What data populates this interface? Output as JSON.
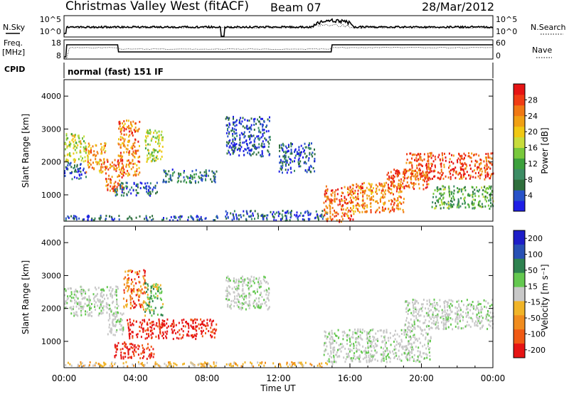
{
  "header": {
    "title": "Christmas Valley West (fitACF)",
    "beam": "Beam 07",
    "date": "28/Mar/2012"
  },
  "param_labels": {
    "nsky": "N.Sky",
    "nsearch": "N.Search",
    "freq_line1": "Freq.",
    "freq_line2": "[MHz]",
    "nave": "Nave",
    "cpid": "CPID",
    "cpid_value": "normal (fast) 151 IF",
    "noise_ticks_left": [
      "10^5",
      "10^0"
    ],
    "noise_ticks_right": [
      "10^5",
      "10^0"
    ],
    "freq_ticks": [
      "18",
      "8"
    ],
    "nave_ticks": [
      "60",
      "0"
    ]
  },
  "chart_data": [
    {
      "type": "heatmap",
      "name": "power",
      "xlabel": "",
      "ylabel": "Slant Range [km]",
      "xlim": [
        0,
        24
      ],
      "ylim": [
        200,
        4500
      ],
      "y_ticks": [
        "1000",
        "2000",
        "3000",
        "4000"
      ],
      "colorbar": {
        "label": "Power [dB]",
        "ticks": [
          "4",
          "8",
          "12",
          "16",
          "20",
          "24",
          "28"
        ],
        "colors": [
          "#1e1ee6",
          "#2852c8",
          "#2e6e3c",
          "#3c8c64",
          "#3ca03c",
          "#78c83c",
          "#c8dc3c",
          "#f0c814",
          "#f0a014",
          "#f07814",
          "#f03c14",
          "#e61414"
        ]
      },
      "regions": [
        {
          "t": [
            0.0,
            1.2
          ],
          "r": [
            2000,
            2900
          ],
          "level": 0.55
        },
        {
          "t": [
            0.0,
            1.2
          ],
          "r": [
            1500,
            2000
          ],
          "level": 0.15
        },
        {
          "t": [
            1.2,
            2.3
          ],
          "r": [
            1700,
            2600
          ],
          "level": 0.75
        },
        {
          "t": [
            2.3,
            3.3
          ],
          "r": [
            1100,
            2100
          ],
          "level": 0.85
        },
        {
          "t": [
            3.0,
            4.2
          ],
          "r": [
            1600,
            3300
          ],
          "level": 0.8
        },
        {
          "t": [
            4.5,
            5.5
          ],
          "r": [
            2000,
            3000
          ],
          "level": 0.5
        },
        {
          "t": [
            2.8,
            5.2
          ],
          "r": [
            1000,
            1400
          ],
          "level": 0.15
        },
        {
          "t": [
            5.5,
            8.5
          ],
          "r": [
            1400,
            1800
          ],
          "level": 0.2
        },
        {
          "t": [
            0.0,
            8.8
          ],
          "r": [
            250,
            400
          ],
          "level": 0.12
        },
        {
          "t": [
            9.0,
            11.5
          ],
          "r": [
            2200,
            3400
          ],
          "level": 0.08
        },
        {
          "t": [
            12.0,
            14.0
          ],
          "r": [
            1700,
            2600
          ],
          "level": 0.1
        },
        {
          "t": [
            9.0,
            15.0
          ],
          "r": [
            250,
            550
          ],
          "level": 0.12
        },
        {
          "t": [
            14.5,
            16.2
          ],
          "r": [
            200,
            1300
          ],
          "level": 0.85
        },
        {
          "t": [
            16.0,
            19.0
          ],
          "r": [
            500,
            1400
          ],
          "level": 0.8
        },
        {
          "t": [
            18.0,
            20.5
          ],
          "r": [
            1200,
            1800
          ],
          "level": 0.85
        },
        {
          "t": [
            19.0,
            24.0
          ],
          "r": [
            1500,
            2300
          ],
          "level": 0.9
        },
        {
          "t": [
            20.5,
            24.0
          ],
          "r": [
            600,
            1300
          ],
          "level": 0.35
        }
      ]
    },
    {
      "type": "heatmap",
      "name": "velocity",
      "xlabel": "Time UT",
      "ylabel": "Slant Range [km]",
      "xlim": [
        0,
        24
      ],
      "ylim": [
        200,
        4500
      ],
      "x_ticks": [
        "00:00",
        "04:00",
        "08:00",
        "12:00",
        "16:00",
        "20:00",
        "00:00"
      ],
      "y_ticks": [
        "1000",
        "2000",
        "3000",
        "4000"
      ],
      "colorbar": {
        "label": "Velocity [m s⁻¹]",
        "ticks": [
          "200",
          "100",
          "50",
          "15",
          "-15",
          "-50",
          "-100",
          "-200"
        ],
        "colors": [
          "#1e1ec8",
          "#2850b4",
          "#2e8250",
          "#64c850",
          "#c8c8c8",
          "#f0b428",
          "#f08c1e",
          "#f05a14",
          "#e61414"
        ]
      },
      "regions": [
        {
          "t": [
            0.0,
            3.0
          ],
          "r": [
            1800,
            2700
          ],
          "class": "ground"
        },
        {
          "t": [
            2.4,
            3.3
          ],
          "r": [
            1200,
            2000
          ],
          "class": "ground"
        },
        {
          "t": [
            3.3,
            4.5
          ],
          "r": [
            2000,
            3200
          ],
          "class": "neg_mid"
        },
        {
          "t": [
            4.5,
            5.5
          ],
          "r": [
            1800,
            2800
          ],
          "class": "pos_mid"
        },
        {
          "t": [
            2.8,
            5.0
          ],
          "r": [
            500,
            1000
          ],
          "class": "neg_high"
        },
        {
          "t": [
            3.5,
            8.5
          ],
          "r": [
            1100,
            1700
          ],
          "class": "neg_high"
        },
        {
          "t": [
            9.0,
            11.5
          ],
          "r": [
            2000,
            3000
          ],
          "class": "ground"
        },
        {
          "t": [
            14.5,
            20.5
          ],
          "r": [
            400,
            1400
          ],
          "class": "ground"
        },
        {
          "t": [
            19.0,
            24.0
          ],
          "r": [
            1400,
            2300
          ],
          "class": "ground"
        },
        {
          "t": [
            0.0,
            15.0
          ],
          "r": [
            250,
            400
          ],
          "class": "neg_low"
        }
      ]
    }
  ]
}
